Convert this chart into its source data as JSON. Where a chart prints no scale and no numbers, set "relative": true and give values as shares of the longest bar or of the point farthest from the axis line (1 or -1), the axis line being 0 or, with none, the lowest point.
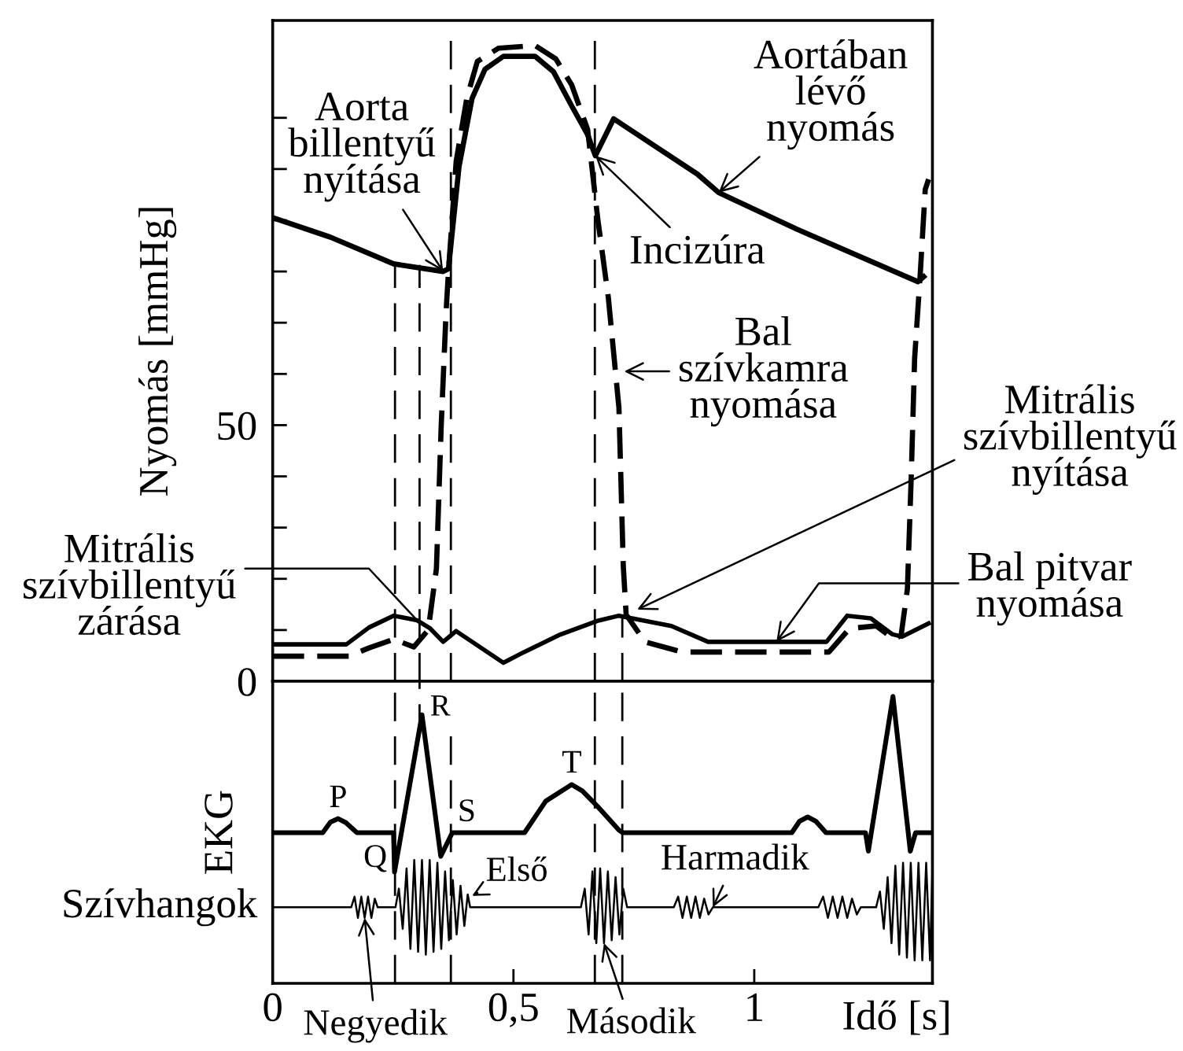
{
  "chart_data": [
    {
      "type": "line",
      "ylabel": "Nyomás [mmHg]",
      "xlim": [
        0,
        1.37
      ],
      "ylim": [
        0,
        129
      ],
      "yticks": [
        0,
        {
          "value": 10,
          "label": null
        },
        {
          "value": 20,
          "label": null
        },
        {
          "value": 30,
          "label": null
        },
        {
          "value": 40,
          "label": null
        },
        50,
        {
          "value": 60,
          "label": null
        },
        {
          "value": 70,
          "label": null
        },
        {
          "value": 80,
          "label": null
        },
        {
          "value": 90,
          "label": null
        },
        {
          "value": 100,
          "label": null
        },
        {
          "value": 110,
          "label": null
        }
      ],
      "tick_labels": "y",
      "series": [
        {
          "color": "#000000",
          "x": [
            0,
            0.12,
            0.251,
            0.354,
            0.365,
            0.387,
            0.414,
            0.441,
            0.479,
            0.545,
            0.583,
            0.621,
            0.654,
            0.67,
            0.708,
            0.774,
            0.882,
            0.926,
            1.09,
            1.34,
            1.352
          ],
          "values": [
            90.5,
            86.7,
            81.5,
            80,
            80.5,
            100.5,
            113.8,
            119.5,
            122,
            122,
            119,
            112.3,
            106.7,
            102.6,
            109.8,
            105.7,
            99,
            95.4,
            88.2,
            78,
            79
          ]
        },
        {
          "color": "#000000",
          "line_style": "dashed",
          "x": [
            0,
            0.158,
            0.2,
            0.251,
            0.293,
            0.323,
            0.34,
            0.35,
            0.36,
            0.365,
            0.381,
            0.403,
            0.425,
            0.469,
            0.545,
            0.588,
            0.621,
            0.654,
            0.675,
            0.697,
            0.719,
            0.728,
            0.734,
            0.773,
            0.85,
            1.155,
            1.198,
            1.253,
            1.291,
            1.305,
            1.318,
            1.326,
            1.333,
            1.345,
            1.355,
            1.362
          ],
          "values": [
            4.9,
            4.9,
            6.5,
            8.2,
            6.7,
            10,
            22,
            50,
            72,
            80,
            101.5,
            113.8,
            121,
            123.6,
            124.1,
            121.5,
            116.4,
            107.7,
            90.3,
            74.9,
            53.4,
            22.6,
            13,
            7.7,
            5.7,
            5.7,
            10.3,
            10.8,
            8.2,
            9,
            18,
            40,
            63,
            80,
            96,
            98
          ]
        },
        {
          "color": "#000000",
          "x": [
            0,
            0.153,
            0.2,
            0.251,
            0.3,
            0.326,
            0.354,
            0.381,
            0.479,
            0.522,
            0.594,
            0.675,
            0.719,
            0.828,
            0.904,
            1.15,
            1.193,
            1.242,
            1.286,
            1.307,
            1.362
          ],
          "values": [
            7.2,
            7.2,
            10.5,
            12.8,
            11.9,
            10.4,
            7.7,
            9.8,
            3.6,
            5.7,
            9,
            11.8,
            12.8,
            10.8,
            7.7,
            7.7,
            12.8,
            12.3,
            9.2,
            8.7,
            11.3
          ]
        }
      ],
      "ref_lines": [
        {
          "axis": "x",
          "value": 0.254,
          "color": "#000000",
          "line_style": "dashed"
        },
        {
          "axis": "x",
          "value": 0.305,
          "color": "#000000",
          "line_style": "dashed"
        },
        {
          "axis": "x",
          "value": 0.37,
          "color": "#000000",
          "line_style": "dashed"
        },
        {
          "axis": "x",
          "value": 0.669,
          "color": "#000000",
          "line_style": "dashed"
        },
        {
          "axis": "x",
          "value": 0.726,
          "color": "#000000",
          "line_style": "dashed"
        }
      ],
      "annotations": [
        {
          "text": "Aorta\nbillentyű\nnyítása",
          "x": 0.354,
          "y": 80
        },
        {
          "text": "Incizúra",
          "x": 0.67,
          "y": 102.6
        },
        {
          "text": "Aortában\nlévő\nnyomás",
          "x": 0.926,
          "y": 95.4
        },
        {
          "text": "Bal\nszívkamra\nnyomása",
          "x": 0.73,
          "y": 60.5
        },
        {
          "text": "Mitrális\nszívbillentyű\nzárása",
          "x": 0.3,
          "y": 11.9
        },
        {
          "text": "Mitrális\nszívbillentyű\nnyítása",
          "x": 0.757,
          "y": 14
        },
        {
          "text": "Bal pitvar\nnyomása",
          "x": 1.046,
          "y": 7.7
        }
      ]
    },
    {
      "type": "line",
      "relative": true,
      "ylabel": "EKG",
      "xlabel": "Idő [s]",
      "xlim": [
        0,
        1.37
      ],
      "xticks": [
        0,
        {
          "value": 0.5,
          "label": "0,5"
        },
        1
      ],
      "tick_labels": "x",
      "series": [
        {
          "color": "#000000",
          "x": [
            0,
            0.104,
            0.12,
            0.136,
            0.152,
            0.175,
            0.251,
            0.253,
            0.31,
            0.349,
            0.373,
            0.523,
            0.567,
            0.621,
            0.643,
            0.675,
            0.719,
            0.727,
            1.078,
            1.094,
            1.111,
            1.128,
            1.149,
            1.231,
            1.237,
            1.288,
            1.324,
            1.335,
            1.37
          ],
          "values": [
            0.525,
            0.525,
            0.562,
            0.574,
            0.56,
            0.525,
            0.525,
            0.388,
            0.936,
            0.443,
            0.525,
            0.525,
            0.635,
            0.693,
            0.671,
            0.616,
            0.534,
            0.525,
            0.525,
            0.565,
            0.58,
            0.565,
            0.525,
            0.525,
            0.461,
            1.0,
            0.461,
            0.525,
            0.525
          ]
        },
        {
          "name": "Szívhangok",
          "color": "#000000",
          "x": [
            0,
            0.163,
            0.17,
            0.177,
            0.184,
            0.191,
            0.198,
            0.205,
            0.212,
            0.218,
            0.255,
            0.262,
            0.27,
            0.278,
            0.286,
            0.294,
            0.302,
            0.31,
            0.318,
            0.326,
            0.334,
            0.342,
            0.35,
            0.358,
            0.366,
            0.374,
            0.382,
            0.39,
            0.398,
            0.405,
            0.41,
            0.64,
            0.648,
            0.656,
            0.664,
            0.672,
            0.68,
            0.688,
            0.696,
            0.704,
            0.712,
            0.72,
            0.728,
            0.736,
            0.833,
            0.842,
            0.851,
            0.86,
            0.869,
            0.878,
            0.887,
            0.896,
            0.905,
            0.914,
            1.133,
            1.143,
            1.153,
            1.163,
            1.173,
            1.183,
            1.193,
            1.203,
            1.213,
            1.221,
            1.253,
            1.261,
            1.269,
            1.277,
            1.285,
            1.293,
            1.301,
            1.309,
            1.317,
            1.325,
            1.333,
            1.341,
            1.349,
            1.357,
            1.365,
            1.37
          ],
          "values": [
            0.265,
            0.265,
            0.302,
            0.228,
            0.302,
            0.228,
            0.302,
            0.228,
            0.295,
            0.265,
            0.265,
            0.33,
            0.19,
            0.4,
            0.12,
            0.43,
            0.11,
            0.43,
            0.1,
            0.43,
            0.11,
            0.42,
            0.12,
            0.39,
            0.15,
            0.36,
            0.17,
            0.34,
            0.2,
            0.31,
            0.265,
            0.265,
            0.33,
            0.17,
            0.39,
            0.14,
            0.4,
            0.14,
            0.39,
            0.15,
            0.37,
            0.17,
            0.33,
            0.265,
            0.265,
            0.302,
            0.228,
            0.302,
            0.228,
            0.302,
            0.228,
            0.295,
            0.24,
            0.265,
            0.265,
            0.302,
            0.228,
            0.302,
            0.228,
            0.302,
            0.228,
            0.295,
            0.24,
            0.265,
            0.265,
            0.32,
            0.19,
            0.37,
            0.14,
            0.41,
            0.1,
            0.42,
            0.09,
            0.42,
            0.08,
            0.42,
            0.08,
            0.42,
            0.08,
            0.4
          ]
        }
      ],
      "ref_lines": [
        {
          "axis": "x",
          "value": 0.254,
          "color": "#000000",
          "line_style": "dashed"
        },
        {
          "axis": "x",
          "value": 0.305,
          "color": "#000000",
          "line_style": "dashed"
        },
        {
          "axis": "x",
          "value": 0.37,
          "color": "#000000",
          "line_style": "dashed"
        },
        {
          "axis": "x",
          "value": 0.669,
          "color": "#000000",
          "line_style": "dashed"
        },
        {
          "axis": "x",
          "value": 0.726,
          "color": "#000000",
          "line_style": "dashed"
        }
      ],
      "annotations": [
        {
          "text": "P",
          "x": 0.136,
          "y": 0.574
        },
        {
          "text": "Q",
          "x": 0.253,
          "y": 0.388
        },
        {
          "text": "R",
          "x": 0.31,
          "y": 0.936
        },
        {
          "text": "S",
          "x": 0.349,
          "y": 0.443
        },
        {
          "text": "T",
          "x": 0.621,
          "y": 0.693
        },
        {
          "text": "Első",
          "x": 0.414,
          "y": 0.305
        },
        {
          "text": "Harmadik",
          "x": 0.914,
          "y": 0.265
        },
        {
          "text": "Negyedik",
          "x": 0.191,
          "y": 0.228
        },
        {
          "text": "Második",
          "x": 0.688,
          "y": 0.14
        }
      ]
    }
  ]
}
